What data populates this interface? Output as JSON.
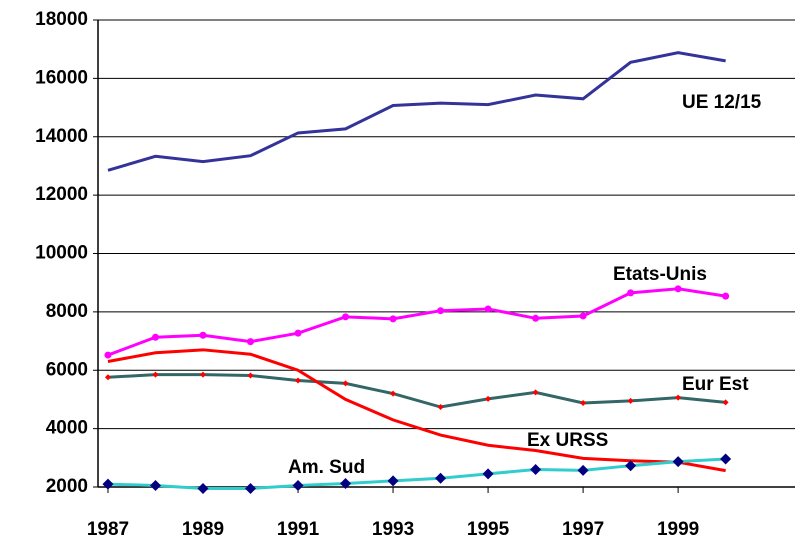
{
  "chart_data": {
    "type": "line",
    "x": [
      1987,
      1988,
      1989,
      1990,
      1991,
      1992,
      1993,
      1994,
      1995,
      1996,
      1997,
      1998,
      1999,
      2000
    ],
    "xlim": [
      1986.79,
      2001.46
    ],
    "xticks": [
      1987,
      1989,
      1991,
      1993,
      1995,
      1997,
      1999
    ],
    "ylim": [
      2000,
      18000
    ],
    "yticks": [
      2000,
      4000,
      6000,
      8000,
      10000,
      12000,
      14000,
      16000,
      18000
    ],
    "grid": true,
    "series": [
      {
        "name": "UE 12/15",
        "color": "#333399",
        "marker": "none",
        "values": [
          12850,
          13330,
          13150,
          13350,
          14130,
          14270,
          15070,
          15150,
          15100,
          15430,
          15300,
          16550,
          16880,
          16600
        ]
      },
      {
        "name": "Etats-Unis",
        "color": "#ff00ff",
        "marker": "circle",
        "values": [
          6520,
          7130,
          7200,
          6980,
          7270,
          7830,
          7760,
          8040,
          8100,
          7780,
          7860,
          8650,
          8790,
          8540
        ]
      },
      {
        "name": "Eur Est",
        "color": "#336666",
        "marker": "diamond",
        "marker_color": "#ff0000",
        "values": [
          5760,
          5850,
          5850,
          5820,
          5650,
          5550,
          5200,
          4740,
          5020,
          5240,
          4880,
          4950,
          5060,
          4900
        ]
      },
      {
        "name": "Ex URSS",
        "color": "#ff0000",
        "marker": "none",
        "values": [
          6300,
          6600,
          6700,
          6550,
          6000,
          5000,
          4300,
          3780,
          3430,
          3250,
          2980,
          2900,
          2850,
          2560
        ]
      },
      {
        "name": "Am. Sud",
        "color": "#33cccc",
        "marker": "diamond",
        "marker_color": "#000080",
        "values": [
          2100,
          2050,
          1950,
          1950,
          2050,
          2120,
          2210,
          2300,
          2450,
          2600,
          2570,
          2730,
          2870,
          2960
        ]
      }
    ]
  }
}
